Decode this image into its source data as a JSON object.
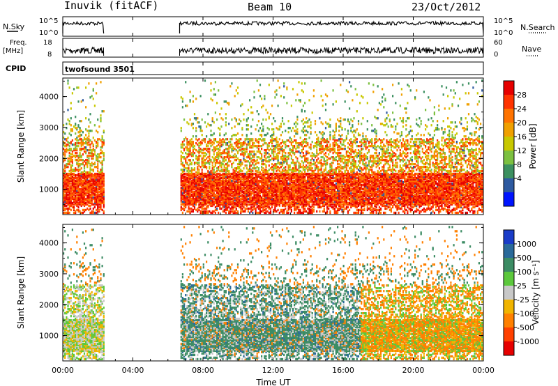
{
  "header": {
    "radar_title": "Inuvik (fitACF)",
    "beam_title": "Beam 10",
    "date_title": "23/Oct/2012"
  },
  "info_panels": {
    "nsky_label": "N.Sky",
    "nsky_ticks": [
      "10^5",
      "10^0"
    ],
    "nsearch_label": "N.Search",
    "nsearch_ticks": [
      "10^5",
      "10^0"
    ],
    "freq_label": "Freq.",
    "freq_unit": "[MHz]",
    "freq_ticks": [
      "18",
      "8"
    ],
    "nave_label": "Nave",
    "nave_ticks": [
      "60",
      "0"
    ],
    "cpid_label": "CPID",
    "cpid_value": "twofsound 3501"
  },
  "axes": {
    "ylabel": "Slant Range [km]",
    "xlabel": "Time UT",
    "x_ticks": [
      "00:00",
      "04:00",
      "08:00",
      "12:00",
      "16:00",
      "20:00",
      "00:00"
    ],
    "y_ticks": [
      "1000",
      "2000",
      "3000",
      "4000"
    ]
  },
  "colorbars": {
    "power": {
      "title": "Power [dB]",
      "ticks": [
        "28",
        "24",
        "20",
        "16",
        "12",
        "8",
        "4"
      ],
      "colors": [
        "#e60000",
        "#ff3300",
        "#ff7300",
        "#f0a000",
        "#c8c800",
        "#7cc040",
        "#3c9060",
        "#2e5aa0",
        "#0014ff"
      ]
    },
    "velocity": {
      "title": "Velocity [m s⁻¹]",
      "ticks": [
        "1000",
        "500",
        "100",
        "25",
        "-25",
        "-100",
        "-500",
        "-1000"
      ],
      "colors": [
        "#1a3cc8",
        "#2a6a9a",
        "#3c8c64",
        "#5cc83c",
        "#c8c8c8",
        "#f0b400",
        "#ff8000",
        "#ff4000",
        "#e60000"
      ]
    }
  },
  "chart_data": [
    {
      "type": "heatmap",
      "title": "Power [dB]",
      "xlabel": "Time UT",
      "ylabel": "Slant Range [km]",
      "xlim": [
        "00:00",
        "24:00"
      ],
      "ylim": [
        180,
        4600
      ],
      "observing_intervals": [
        [
          "00:00",
          "02:20"
        ],
        [
          "06:40",
          "24:00"
        ]
      ],
      "dominant_band_km": [
        [
          400,
          1500
        ]
      ],
      "color_range": [
        0,
        32
      ]
    },
    {
      "type": "heatmap",
      "title": "Velocity [m s⁻¹]",
      "xlabel": "Time UT",
      "ylabel": "Slant Range [km]",
      "xlim": [
        "00:00",
        "24:00"
      ],
      "ylim": [
        180,
        4600
      ],
      "observing_intervals": [
        [
          "00:00",
          "02:20"
        ],
        [
          "06:40",
          "24:00"
        ]
      ],
      "dominant_band_km": [
        [
          400,
          2500
        ]
      ],
      "color_scale": [
        -1000,
        1000
      ]
    }
  ]
}
